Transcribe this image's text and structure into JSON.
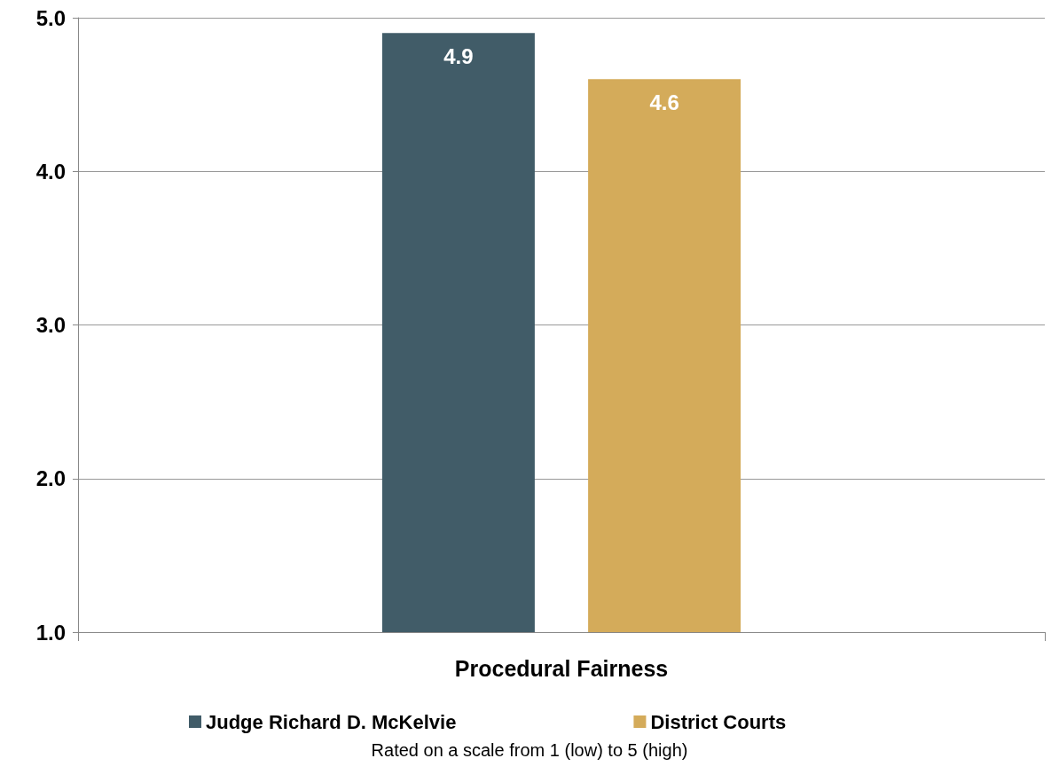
{
  "chart_data": {
    "type": "bar",
    "categories": [
      "Procedural Fairness"
    ],
    "series": [
      {
        "name": "Judge Richard D. McKelvie",
        "color": "#415c68",
        "values": [
          4.9
        ]
      },
      {
        "name": "District Courts",
        "color": "#d4ab5a",
        "values": [
          4.6
        ]
      }
    ],
    "ylim": [
      1,
      5
    ],
    "yticks": [
      {
        "value": 1,
        "label": "1.0"
      },
      {
        "value": 2,
        "label": "2.0"
      },
      {
        "value": 3,
        "label": "3.0"
      },
      {
        "value": 4,
        "label": "4.0"
      },
      {
        "value": 5,
        "label": "5.0"
      }
    ],
    "grid": "y",
    "legend": "bottom",
    "data_labels": true,
    "annotations": [
      "Rated on a scale from 1 (low) to 5 (high)"
    ]
  }
}
